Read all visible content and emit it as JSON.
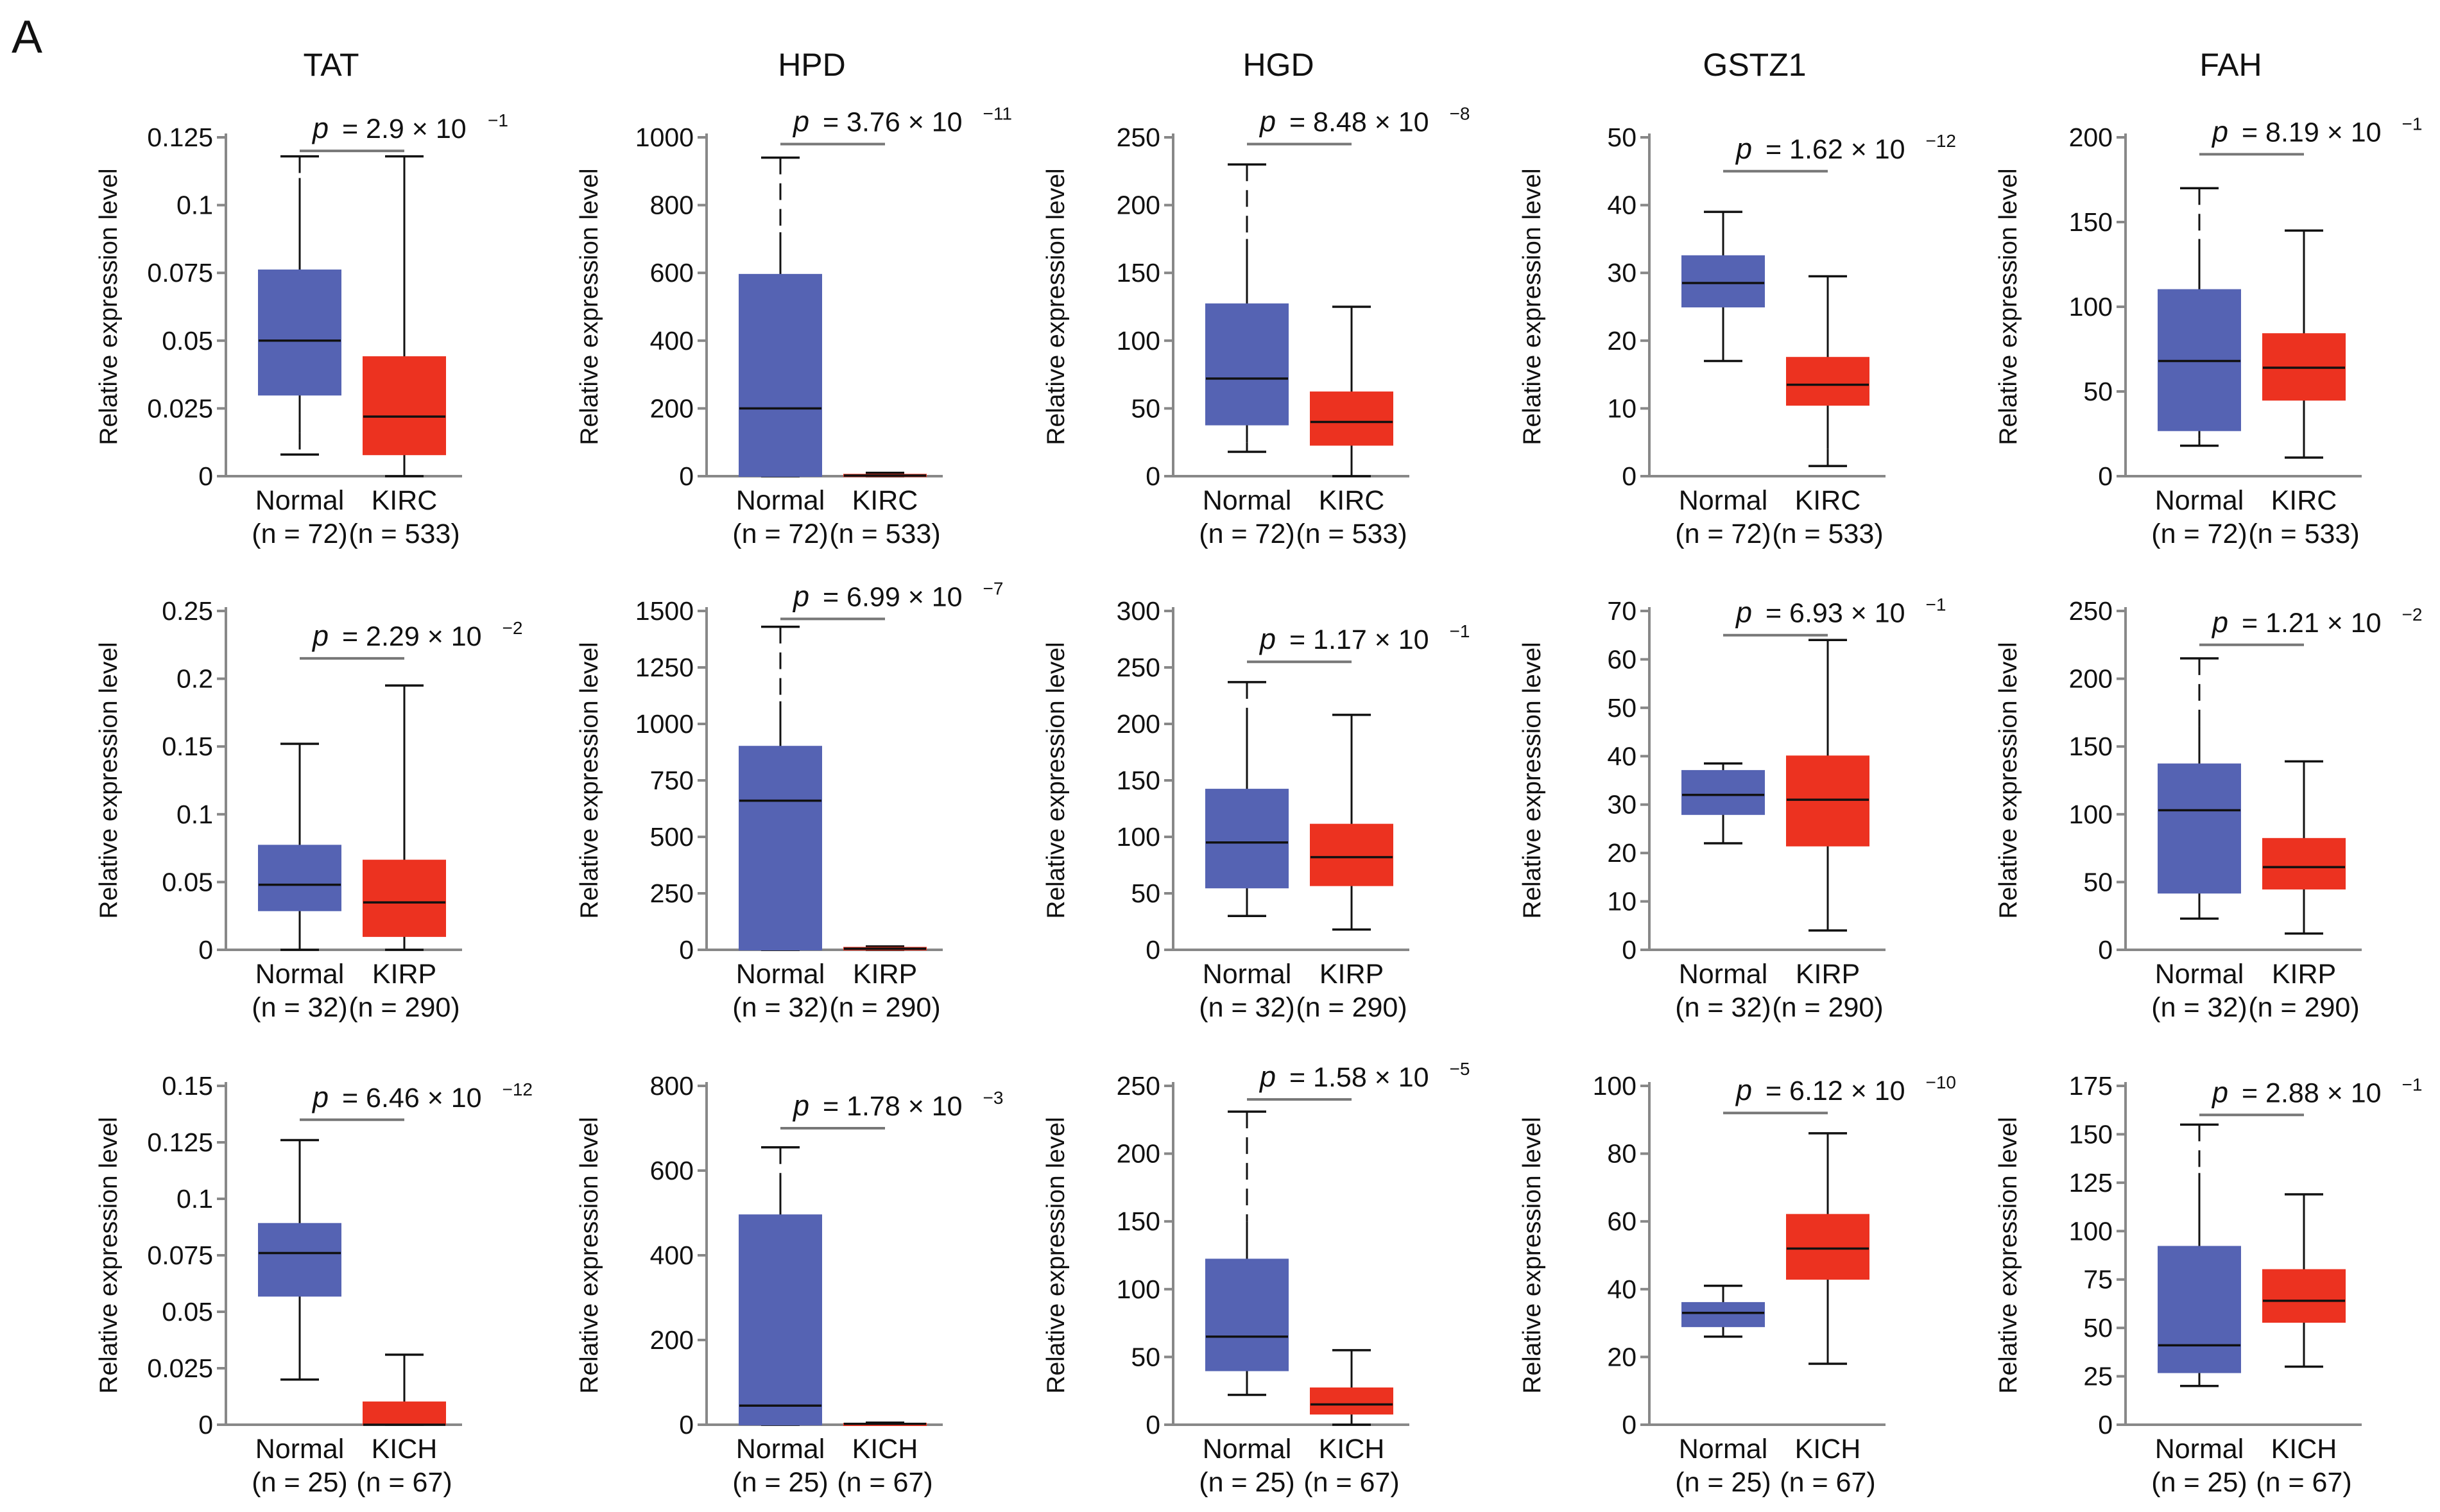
{
  "panel_label": "A",
  "colors": {
    "normal": "#5563b3",
    "tumor": "#ec3220",
    "axis": "#888888",
    "median": "#111111",
    "bracket": "#777777"
  },
  "chart_data": [
    {
      "type": "box",
      "row": 0,
      "col": 0,
      "title": "TAT",
      "ylabel": "Relative expression level",
      "ylim": [
        0,
        0.125
      ],
      "yticks": [
        "0",
        "0.025",
        "0.05",
        "0.075",
        "0.1",
        "0.125"
      ],
      "categories": [
        "Normal",
        "KIRC"
      ],
      "n_labels": [
        "(n = 72)",
        "(n = 533)"
      ],
      "p_prefix": "p",
      "p_value": "= 2.9 × 10",
      "p_exp": "−1",
      "bracket_y": 0.12,
      "boxes": [
        {
          "min": 0.008,
          "q1": 0.03,
          "median": 0.05,
          "q3": 0.076,
          "max": 0.118,
          "solid_lower": 0.016,
          "solid_upper": 0.11
        },
        {
          "min": 0.0,
          "q1": 0.008,
          "median": 0.022,
          "q3": 0.044,
          "max": 0.118,
          "solid_lower": 0.0,
          "solid_upper": 0.118
        }
      ]
    },
    {
      "type": "box",
      "row": 0,
      "col": 1,
      "title": "HPD",
      "ylabel": "Relative expression level",
      "ylim": [
        0,
        1000
      ],
      "yticks": [
        "0",
        "200",
        "400",
        "600",
        "800",
        "1000"
      ],
      "categories": [
        "Normal",
        "KIRC"
      ],
      "n_labels": [
        "(n = 72)",
        "(n = 533)"
      ],
      "p_prefix": "p",
      "p_value": "= 3.76 × 10",
      "p_exp": "−11",
      "bracket_y": 980,
      "boxes": [
        {
          "min": 0,
          "q1": 0,
          "median": 200,
          "q3": 595,
          "max": 940,
          "solid_lower": 0,
          "solid_upper": 720
        },
        {
          "min": 0,
          "q1": 0,
          "median": 2,
          "q3": 5,
          "max": 10,
          "solid_lower": 0,
          "solid_upper": 10
        }
      ]
    },
    {
      "type": "box",
      "row": 0,
      "col": 2,
      "title": "HGD",
      "ylabel": "Relative expression level",
      "ylim": [
        0,
        250
      ],
      "yticks": [
        "0",
        "50",
        "100",
        "150",
        "200",
        "250"
      ],
      "categories": [
        "Normal",
        "KIRC"
      ],
      "n_labels": [
        "(n = 72)",
        "(n = 533)"
      ],
      "p_prefix": "p",
      "p_value": "= 8.48 × 10",
      "p_exp": "−8",
      "bracket_y": 245,
      "boxes": [
        {
          "min": 18,
          "q1": 38,
          "median": 72,
          "q3": 127,
          "max": 230,
          "solid_lower": 25,
          "solid_upper": 175
        },
        {
          "min": 0,
          "q1": 23,
          "median": 40,
          "q3": 62,
          "max": 125,
          "solid_lower": 0,
          "solid_upper": 125
        }
      ]
    },
    {
      "type": "box",
      "row": 0,
      "col": 3,
      "title": "GSTZ1",
      "ylabel": "Relative expression level",
      "ylim": [
        0,
        50
      ],
      "yticks": [
        "0",
        "10",
        "20",
        "30",
        "40",
        "50"
      ],
      "categories": [
        "Normal",
        "KIRC"
      ],
      "n_labels": [
        "(n = 72)",
        "(n = 533)"
      ],
      "p_prefix": "p",
      "p_value": "= 1.62 × 10",
      "p_exp": "−12",
      "bracket_y": 45,
      "boxes": [
        {
          "min": 17,
          "q1": 25,
          "median": 28.5,
          "q3": 32.5,
          "max": 39,
          "solid_lower": 17,
          "solid_upper": 39
        },
        {
          "min": 1.5,
          "q1": 10.5,
          "median": 13.5,
          "q3": 17.5,
          "max": 29.5,
          "solid_lower": 4,
          "solid_upper": 29.5
        }
      ]
    },
    {
      "type": "box",
      "row": 0,
      "col": 4,
      "title": "FAH",
      "ylabel": "Relative expression level",
      "ylim": [
        0,
        200
      ],
      "yticks": [
        "0",
        "50",
        "100",
        "150",
        "200"
      ],
      "categories": [
        "Normal",
        "KIRC"
      ],
      "n_labels": [
        "(n = 72)",
        "(n = 533)"
      ],
      "p_prefix": "p",
      "p_value": "= 8.19 × 10",
      "p_exp": "−1",
      "bracket_y": 190,
      "boxes": [
        {
          "min": 18,
          "q1": 27,
          "median": 68,
          "q3": 110,
          "max": 170,
          "solid_lower": 22,
          "solid_upper": 140
        },
        {
          "min": 11,
          "q1": 45,
          "median": 64,
          "q3": 84,
          "max": 145,
          "solid_lower": 11,
          "solid_upper": 145
        }
      ]
    },
    {
      "type": "box",
      "row": 1,
      "col": 0,
      "title": "",
      "ylabel": "Relative expression level",
      "ylim": [
        0,
        0.25
      ],
      "yticks": [
        "0",
        "0.05",
        "0.1",
        "0.15",
        "0.2",
        "0.25"
      ],
      "categories": [
        "Normal",
        "KIRP"
      ],
      "n_labels": [
        "(n = 32)",
        "(n = 290)"
      ],
      "p_prefix": "p",
      "p_value": "= 2.29 × 10",
      "p_exp": "−2",
      "bracket_y": 0.215,
      "boxes": [
        {
          "min": 0.0,
          "q1": 0.029,
          "median": 0.048,
          "q3": 0.077,
          "max": 0.152,
          "solid_lower": 0.0,
          "solid_upper": 0.152
        },
        {
          "min": 0.0,
          "q1": 0.01,
          "median": 0.035,
          "q3": 0.066,
          "max": 0.195,
          "solid_lower": 0.0,
          "solid_upper": 0.195
        }
      ]
    },
    {
      "type": "box",
      "row": 1,
      "col": 1,
      "title": "",
      "ylabel": "Relative expression level",
      "ylim": [
        0,
        1500
      ],
      "yticks": [
        "0",
        "250",
        "500",
        "750",
        "1000",
        "1250",
        "1500"
      ],
      "categories": [
        "Normal",
        "KIRP"
      ],
      "n_labels": [
        "(n = 32)",
        "(n = 290)"
      ],
      "p_prefix": "p",
      "p_value": "= 6.99 × 10",
      "p_exp": "−7",
      "bracket_y": 1465,
      "boxes": [
        {
          "min": 0,
          "q1": 0,
          "median": 660,
          "q3": 900,
          "max": 1430,
          "solid_lower": 0,
          "solid_upper": 1100
        },
        {
          "min": 0,
          "q1": 0,
          "median": 5,
          "q3": 10,
          "max": 15,
          "solid_lower": 0,
          "solid_upper": 15
        }
      ]
    },
    {
      "type": "box",
      "row": 1,
      "col": 2,
      "title": "",
      "ylabel": "Relative expression level",
      "ylim": [
        0,
        300
      ],
      "yticks": [
        "0",
        "50",
        "100",
        "150",
        "200",
        "250",
        "300"
      ],
      "categories": [
        "Normal",
        "KIRP"
      ],
      "n_labels": [
        "(n = 32)",
        "(n = 290)"
      ],
      "p_prefix": "p",
      "p_value": "= 1.17 × 10",
      "p_exp": "−1",
      "bracket_y": 255,
      "boxes": [
        {
          "min": 30,
          "q1": 55,
          "median": 95,
          "q3": 142,
          "max": 237,
          "solid_lower": 30,
          "solid_upper": 200
        },
        {
          "min": 18,
          "q1": 57,
          "median": 82,
          "q3": 111,
          "max": 208,
          "solid_lower": 18,
          "solid_upper": 208
        }
      ]
    },
    {
      "type": "box",
      "row": 1,
      "col": 3,
      "title": "",
      "ylabel": "Relative expression level",
      "ylim": [
        0,
        70
      ],
      "yticks": [
        "0",
        "10",
        "20",
        "30",
        "40",
        "50",
        "60",
        "70"
      ],
      "categories": [
        "Normal",
        "KIRP"
      ],
      "n_labels": [
        "(n = 32)",
        "(n = 290)"
      ],
      "p_prefix": "p",
      "p_value": "= 6.93 × 10",
      "p_exp": "−1",
      "bracket_y": 65,
      "boxes": [
        {
          "min": 22,
          "q1": 28,
          "median": 32,
          "q3": 37,
          "max": 38.5,
          "solid_lower": 22,
          "solid_upper": 38.5
        },
        {
          "min": 4,
          "q1": 21.5,
          "median": 31,
          "q3": 40,
          "max": 64,
          "solid_lower": 4,
          "solid_upper": 64
        }
      ]
    },
    {
      "type": "box",
      "row": 1,
      "col": 4,
      "title": "",
      "ylabel": "Relative expression level",
      "ylim": [
        0,
        250
      ],
      "yticks": [
        "0",
        "50",
        "100",
        "150",
        "200",
        "250"
      ],
      "categories": [
        "Normal",
        "KIRP"
      ],
      "n_labels": [
        "(n = 32)",
        "(n = 290)"
      ],
      "p_prefix": "p",
      "p_value": "= 1.21 × 10",
      "p_exp": "−2",
      "bracket_y": 225,
      "boxes": [
        {
          "min": 23,
          "q1": 42,
          "median": 103,
          "q3": 137,
          "max": 215,
          "solid_lower": 23,
          "solid_upper": 165
        },
        {
          "min": 12,
          "q1": 45,
          "median": 61,
          "q3": 82,
          "max": 139,
          "solid_lower": 12,
          "solid_upper": 139
        }
      ]
    },
    {
      "type": "box",
      "row": 2,
      "col": 0,
      "title": "",
      "ylabel": "Relative expression level",
      "ylim": [
        0,
        0.15
      ],
      "yticks": [
        "0",
        "0.025",
        "0.05",
        "0.075",
        "0.1",
        "0.125",
        "0.15"
      ],
      "categories": [
        "Normal",
        "KICH"
      ],
      "n_labels": [
        "(n = 25)",
        "(n = 67)"
      ],
      "p_prefix": "p",
      "p_value": "= 6.46 × 10",
      "p_exp": "−12",
      "bracket_y": 0.135,
      "boxes": [
        {
          "min": 0.02,
          "q1": 0.057,
          "median": 0.076,
          "q3": 0.089,
          "max": 0.126,
          "solid_lower": 0.02,
          "solid_upper": 0.126
        },
        {
          "min": 0.0,
          "q1": 0.0,
          "median": 0.0,
          "q3": 0.01,
          "max": 0.031,
          "solid_lower": 0.0,
          "solid_upper": 0.031
        }
      ]
    },
    {
      "type": "box",
      "row": 2,
      "col": 1,
      "title": "",
      "ylabel": "Relative expression level",
      "ylim": [
        0,
        800
      ],
      "yticks": [
        "0",
        "200",
        "400",
        "600",
        "800"
      ],
      "categories": [
        "Normal",
        "KICH"
      ],
      "n_labels": [
        "(n = 25)",
        "(n = 67)"
      ],
      "p_prefix": "p",
      "p_value": "= 1.78 × 10",
      "p_exp": "−3",
      "bracket_y": 700,
      "boxes": [
        {
          "min": 0,
          "q1": 0,
          "median": 45,
          "q3": 495,
          "max": 655,
          "solid_lower": 0,
          "solid_upper": 590
        },
        {
          "min": 0,
          "q1": 0,
          "median": 2,
          "q3": 3,
          "max": 5,
          "solid_lower": 0,
          "solid_upper": 5
        }
      ]
    },
    {
      "type": "box",
      "row": 2,
      "col": 2,
      "title": "",
      "ylabel": "Relative expression level",
      "ylim": [
        0,
        250
      ],
      "yticks": [
        "0",
        "50",
        "100",
        "150",
        "200",
        "250"
      ],
      "categories": [
        "Normal",
        "KICH"
      ],
      "n_labels": [
        "(n = 25)",
        "(n = 67)"
      ],
      "p_prefix": "p",
      "p_value": "= 1.58 × 10",
      "p_exp": "−5",
      "bracket_y": 240,
      "boxes": [
        {
          "min": 22,
          "q1": 40,
          "median": 65,
          "q3": 122,
          "max": 231,
          "solid_lower": 22,
          "solid_upper": 150
        },
        {
          "min": 0,
          "q1": 8,
          "median": 15,
          "q3": 27,
          "max": 55,
          "solid_lower": 0,
          "solid_upper": 55
        }
      ]
    },
    {
      "type": "box",
      "row": 2,
      "col": 3,
      "title": "",
      "ylabel": "Relative expression level",
      "ylim": [
        0,
        100
      ],
      "yticks": [
        "0",
        "20",
        "40",
        "60",
        "80",
        "100"
      ],
      "categories": [
        "Normal",
        "KICH"
      ],
      "n_labels": [
        "(n = 25)",
        "(n = 67)"
      ],
      "p_prefix": "p",
      "p_value": "= 6.12 × 10",
      "p_exp": "−10",
      "bracket_y": 92,
      "boxes": [
        {
          "min": 26,
          "q1": 29,
          "median": 33,
          "q3": 36,
          "max": 41,
          "solid_lower": 26,
          "solid_upper": 41
        },
        {
          "min": 18,
          "q1": 43,
          "median": 52,
          "q3": 62,
          "max": 86,
          "solid_lower": 18,
          "solid_upper": 86
        }
      ]
    },
    {
      "type": "box",
      "row": 2,
      "col": 4,
      "title": "",
      "ylabel": "Relative expression level",
      "ylim": [
        0,
        175
      ],
      "yticks": [
        "0",
        "25",
        "50",
        "75",
        "100",
        "125",
        "150",
        "175"
      ],
      "categories": [
        "Normal",
        "KICH"
      ],
      "n_labels": [
        "(n = 25)",
        "(n = 67)"
      ],
      "p_prefix": "p",
      "p_value": "= 2.88 × 10",
      "p_exp": "−1",
      "bracket_y": 160,
      "boxes": [
        {
          "min": 20,
          "q1": 27,
          "median": 41,
          "q3": 92,
          "max": 155,
          "solid_lower": 20,
          "solid_upper": 130
        },
        {
          "min": 30,
          "q1": 53,
          "median": 64,
          "q3": 80,
          "max": 119,
          "solid_lower": 30,
          "solid_upper": 119
        }
      ]
    }
  ]
}
